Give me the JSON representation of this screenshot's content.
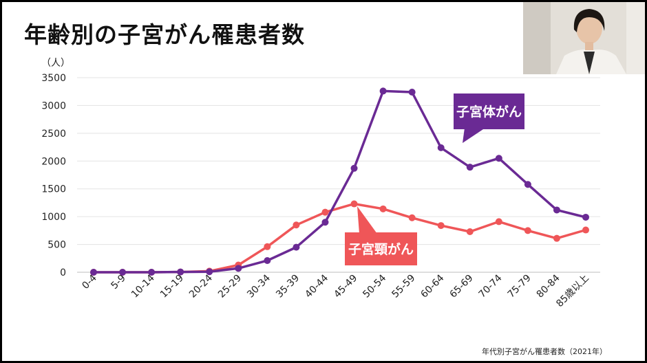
{
  "slide": {
    "title": "年齢別の子宮がん罹患者数",
    "source": "年代別子宮がん罹患者数（2021年）"
  },
  "video": {
    "icon": "presenter-video-feed"
  },
  "chart_data": {
    "type": "line",
    "ylabel": "（人）",
    "ylim": [
      0,
      3500
    ],
    "yticks": [
      0,
      500,
      1000,
      1500,
      2000,
      2500,
      3000,
      3500
    ],
    "grid": true,
    "categories": [
      "0-4",
      "5-9",
      "10-14",
      "15-19",
      "20-24",
      "25-29",
      "30-34",
      "35-39",
      "40-44",
      "45-49",
      "50-54",
      "55-59",
      "60-64",
      "65-69",
      "70-74",
      "75-79",
      "80-84",
      "85歳以上"
    ],
    "series": [
      {
        "name": "子宮体がん",
        "color": "#6a2a94",
        "values": [
          0,
          0,
          0,
          5,
          10,
          70,
          210,
          450,
          900,
          1870,
          3260,
          3240,
          2240,
          1890,
          2050,
          1580,
          1120,
          990
        ]
      },
      {
        "name": "子宮頸がん",
        "color": "#ef5658",
        "values": [
          0,
          0,
          0,
          5,
          20,
          130,
          460,
          850,
          1080,
          1230,
          1140,
          980,
          840,
          730,
          910,
          750,
          610,
          760
        ]
      }
    ]
  }
}
